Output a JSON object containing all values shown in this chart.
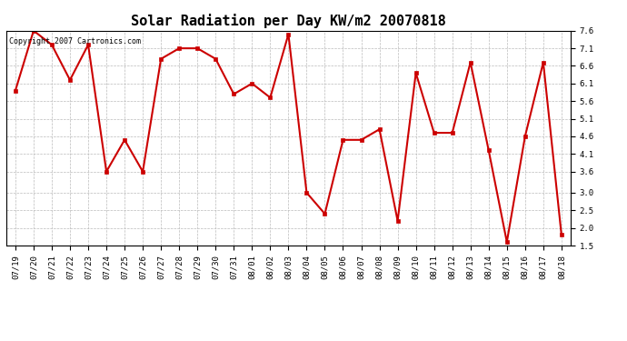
{
  "title": "Solar Radiation per Day KW/m2 20070818",
  "copyright_text": "Copyright 2007 Cartronics.com",
  "labels": [
    "07/19",
    "07/20",
    "07/21",
    "07/22",
    "07/23",
    "07/24",
    "07/25",
    "07/26",
    "07/27",
    "07/28",
    "07/29",
    "07/30",
    "07/31",
    "08/01",
    "08/02",
    "08/03",
    "08/04",
    "08/05",
    "08/06",
    "08/07",
    "08/08",
    "08/09",
    "08/10",
    "08/11",
    "08/12",
    "08/13",
    "08/14",
    "08/15",
    "08/16",
    "08/17",
    "08/18"
  ],
  "values": [
    5.9,
    7.6,
    7.2,
    6.2,
    7.2,
    3.6,
    4.5,
    3.6,
    6.8,
    7.1,
    7.1,
    6.8,
    5.8,
    6.1,
    5.7,
    7.5,
    3.0,
    2.4,
    4.5,
    4.5,
    4.8,
    2.2,
    6.4,
    4.7,
    4.7,
    6.7,
    4.2,
    1.6,
    4.6,
    6.7,
    1.8
  ],
  "line_color": "#cc0000",
  "marker_color": "#cc0000",
  "marker": "s",
  "marker_size": 2.5,
  "line_width": 1.5,
  "background_color": "#ffffff",
  "plot_bg_color": "#ffffff",
  "grid_color": "#bbbbbb",
  "ylim_min": 1.5,
  "ylim_max": 7.6,
  "yticks": [
    1.5,
    2.0,
    2.5,
    3.0,
    3.6,
    4.1,
    4.6,
    5.1,
    5.6,
    6.1,
    6.6,
    7.1,
    7.6
  ],
  "title_fontsize": 11,
  "tick_fontsize": 6.5,
  "copyright_fontsize": 6
}
